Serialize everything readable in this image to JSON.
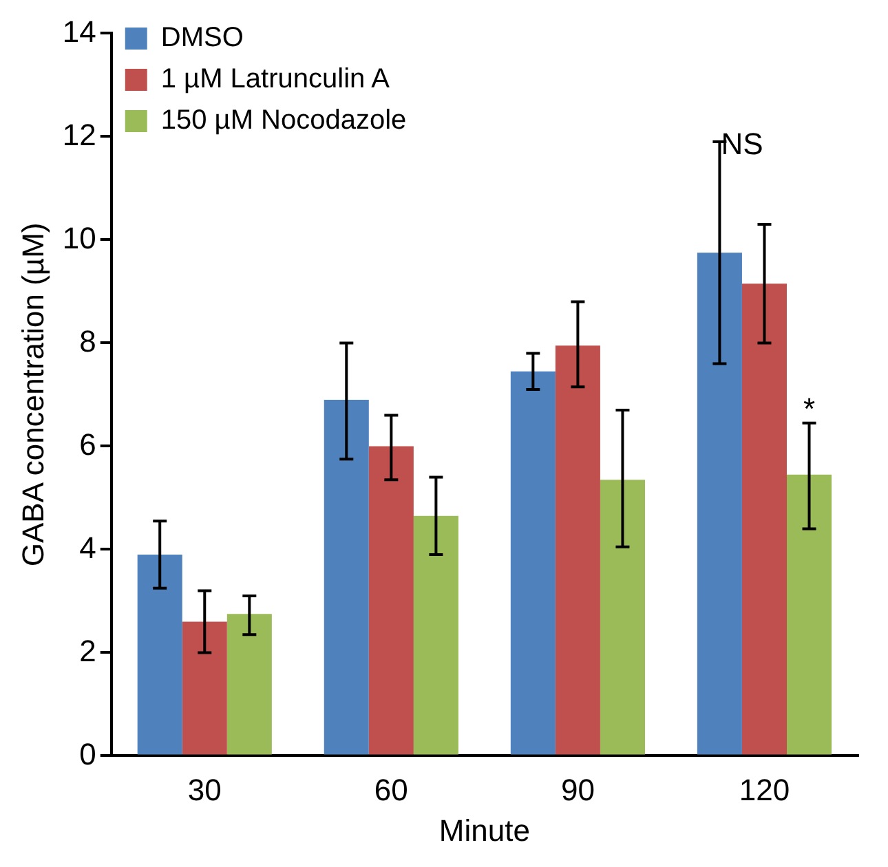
{
  "chart_data": {
    "type": "bar",
    "xlabel": "Minute",
    "ylabel": "GABA concentration (µM)",
    "categories": [
      "30",
      "60",
      "90",
      "120"
    ],
    "series": [
      {
        "name": "DMSO",
        "color": "#4f81bd",
        "values": [
          3.9,
          6.9,
          7.45,
          9.75
        ],
        "errors": [
          [
            3.25,
            4.55
          ],
          [
            5.75,
            8.0
          ],
          [
            7.1,
            7.8
          ],
          [
            7.6,
            11.9
          ]
        ]
      },
      {
        "name": "1 µM Latrunculin A",
        "color": "#c0504d",
        "values": [
          2.6,
          6.0,
          7.95,
          9.15
        ],
        "errors": [
          [
            2.0,
            3.2
          ],
          [
            5.35,
            6.6
          ],
          [
            7.15,
            8.8
          ],
          [
            8.0,
            10.3
          ]
        ]
      },
      {
        "name": "150 µM Nocodazole",
        "color": "#9bbb59",
        "values": [
          2.75,
          4.65,
          5.35,
          5.45
        ],
        "errors": [
          [
            2.35,
            3.1
          ],
          [
            3.9,
            5.4
          ],
          [
            4.05,
            6.7
          ],
          [
            4.4,
            6.45
          ]
        ]
      }
    ],
    "ylim": [
      0,
      14
    ],
    "yticks": [
      0,
      2,
      4,
      6,
      8,
      10,
      12,
      14
    ],
    "grid": false,
    "legend": "top left",
    "annotations": [
      "NS",
      "*"
    ]
  }
}
